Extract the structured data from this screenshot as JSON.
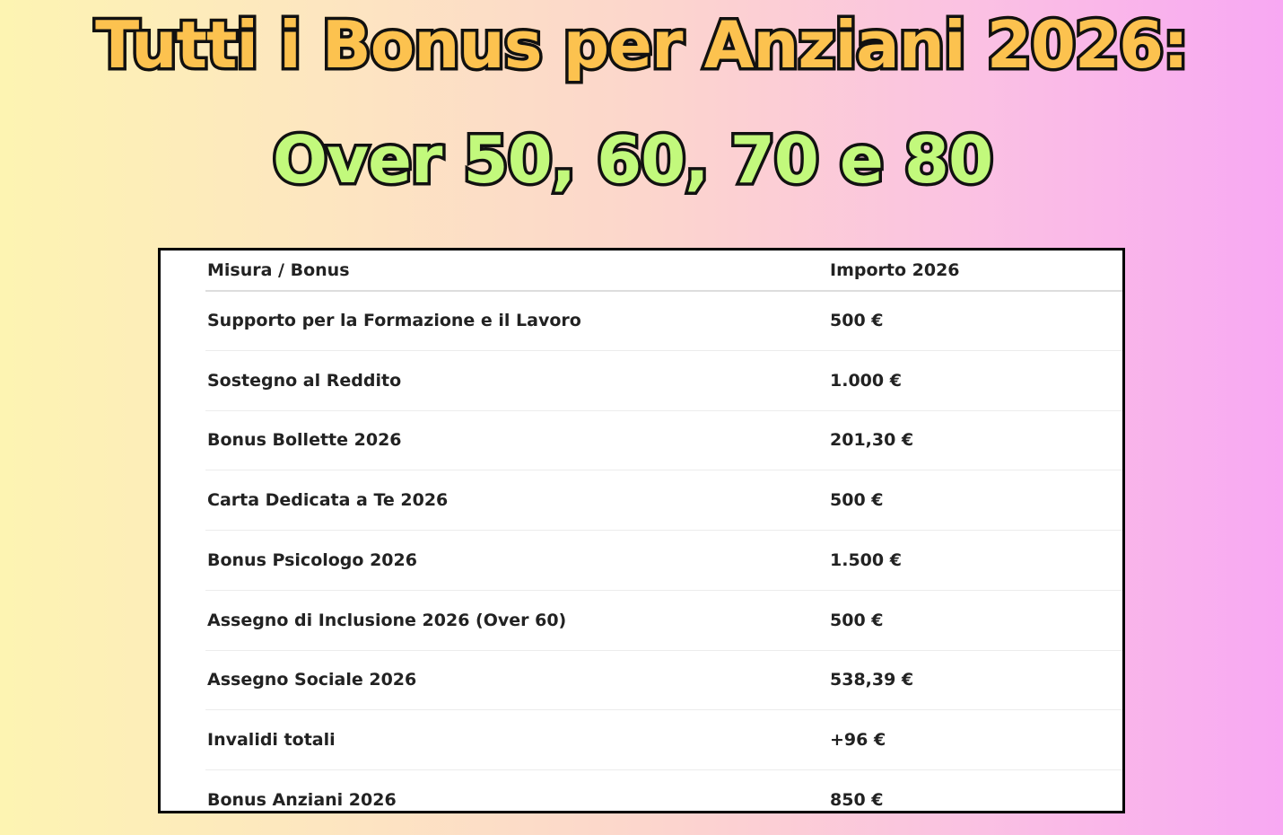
{
  "title": {
    "line1": "Tutti i Bonus per Anziani 2026:",
    "line2": "Over 50, 60, 70 e 80"
  },
  "table": {
    "headers": [
      "Misura / Bonus",
      "Importo 2026"
    ],
    "rows": [
      {
        "misura": "Supporto per la Formazione e il Lavoro",
        "importo": "500 €"
      },
      {
        "misura": "Sostegno al Reddito",
        "importo": "1.000 €"
      },
      {
        "misura": "Bonus Bollette 2026",
        "importo": "201,30 €"
      },
      {
        "misura": "Carta Dedicata a Te 2026",
        "importo": "500 €"
      },
      {
        "misura": "Bonus Psicologo 2026",
        "importo": "1.500 €"
      },
      {
        "misura": "Assegno di Inclusione 2026 (Over 60)",
        "importo": "500 €"
      },
      {
        "misura": "Assegno Sociale 2026",
        "importo": "538,39 €"
      },
      {
        "misura": "Invalidi totali",
        "importo": "+96 €"
      },
      {
        "misura": "Bonus Anziani 2026",
        "importo": "850 €"
      }
    ]
  },
  "colors": {
    "title_line1": "#fcc24f",
    "title_line2": "#c2f97c",
    "outline": "#111111"
  }
}
